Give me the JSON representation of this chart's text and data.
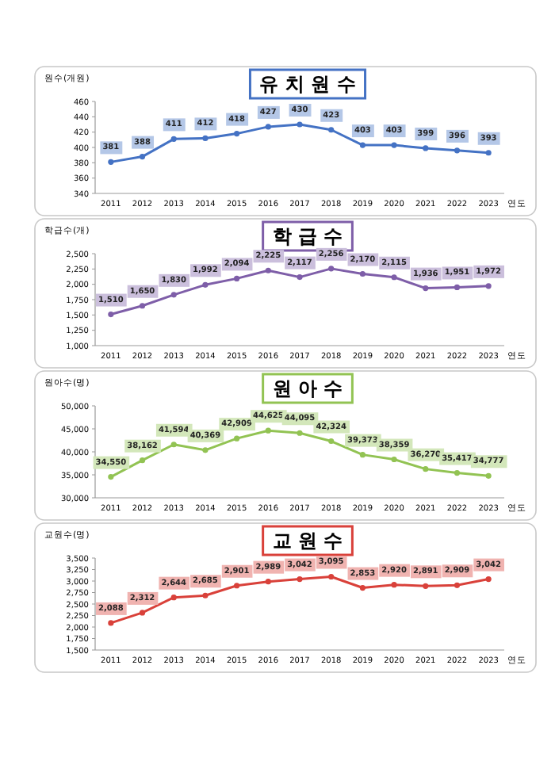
{
  "chart_data": [
    {
      "type": "line",
      "title": "유 치 원 수",
      "ylabel": "원수(개원)",
      "xlabel": "연도",
      "categories": [
        "2011",
        "2012",
        "2013",
        "2014",
        "2015",
        "2016",
        "2017",
        "2018",
        "2019",
        "2020",
        "2021",
        "2022",
        "2023"
      ],
      "series": [
        {
          "color": "#4472c4",
          "values": [
            381,
            388,
            411,
            412,
            418,
            427,
            430,
            423,
            403,
            403,
            399,
            396,
            393
          ]
        }
      ],
      "ylim": [
        340,
        460
      ],
      "yticks": [
        340,
        360,
        380,
        400,
        420,
        440,
        460
      ],
      "marker": "circle",
      "data_labels": true
    },
    {
      "type": "line",
      "title": "학 급 수",
      "ylabel": "학급수(개)",
      "xlabel": "연도",
      "categories": [
        "2011",
        "2012",
        "2013",
        "2014",
        "2015",
        "2016",
        "2017",
        "2018",
        "2019",
        "2020",
        "2021",
        "2022",
        "2023"
      ],
      "series": [
        {
          "color": "#7e5ea8",
          "values": [
            1510,
            1650,
            1830,
            1992,
            2094,
            2225,
            2117,
            2256,
            2170,
            2115,
            1936,
            1951,
            1972
          ],
          "value_labels": [
            "1,510",
            "1,650",
            "1,830",
            "1,992",
            "2,094",
            "2,225",
            "2,117",
            "2,256",
            "2,170",
            "2,115",
            "1,936",
            "1,951",
            "1,972"
          ]
        }
      ],
      "ylim": [
        1000,
        2500
      ],
      "yticks": [
        {
          "value": 1000,
          "label": "1,000"
        },
        {
          "value": 1250,
          "label": "1,250"
        },
        {
          "value": 1500,
          "label": "1,500"
        },
        {
          "value": 1750,
          "label": "1,750"
        },
        {
          "value": 2000,
          "label": "2,000"
        },
        {
          "value": 2250,
          "label": "2,250"
        },
        {
          "value": 2500,
          "label": "2,500"
        }
      ],
      "marker": "circle"
    },
    {
      "type": "line",
      "title": "원 아 수",
      "ylabel": "원아수(명)",
      "xlabel": "연도",
      "categories": [
        "2011",
        "2012",
        "2013",
        "2014",
        "2015",
        "2016",
        "2017",
        "2018",
        "2019",
        "2020",
        "2021",
        "2022",
        "2023"
      ],
      "series": [
        {
          "color": "#92c353",
          "values": [
            34550,
            38162,
            41594,
            40369,
            42909,
            44625,
            44095,
            42324,
            39373,
            38359,
            36270,
            35417,
            34777
          ],
          "value_labels": [
            "34,550",
            "38,162",
            "41,594",
            "40,369",
            "42,909",
            "44,625",
            "44,095",
            "42,324",
            "39,373",
            "38,359",
            "36,270",
            "35,417",
            "34,777"
          ]
        }
      ],
      "ylim": [
        30000,
        50000
      ],
      "yticks": [
        {
          "value": 30000,
          "label": "30,000"
        },
        {
          "value": 35000,
          "label": "35,000"
        },
        {
          "value": 40000,
          "label": "40,000"
        },
        {
          "value": 45000,
          "label": "45,000"
        },
        {
          "value": 50000,
          "label": "50,000"
        }
      ],
      "marker": "circle"
    },
    {
      "type": "line",
      "title": "교 원 수",
      "ylabel": "교원수(명)",
      "xlabel": "연도",
      "categories": [
        "2011",
        "2012",
        "2013",
        "2014",
        "2015",
        "2016",
        "2017",
        "2018",
        "2019",
        "2020",
        "2021",
        "2022",
        "2023"
      ],
      "series": [
        {
          "color": "#d9413a",
          "values": [
            2088,
            2312,
            2644,
            2685,
            2901,
            2989,
            3042,
            3095,
            2853,
            2920,
            2891,
            2909,
            3042
          ],
          "value_labels": [
            "2,088",
            "2,312",
            "2,644",
            "2,685",
            "2,901",
            "2,989",
            "3,042",
            "3,095",
            "2,853",
            "2,920",
            "2,891",
            "2,909",
            "3,042"
          ]
        }
      ],
      "ylim": [
        1500,
        3500
      ],
      "yticks": [
        {
          "value": 1500,
          "label": "1,500"
        },
        {
          "value": 1750,
          "label": "1,750"
        },
        {
          "value": 2000,
          "label": "2,000"
        },
        {
          "value": 2250,
          "label": "2,250"
        },
        {
          "value": 2500,
          "label": "2,500"
        },
        {
          "value": 2750,
          "label": "2,750"
        },
        {
          "value": 3000,
          "label": "3,000"
        },
        {
          "value": 3250,
          "label": "3,250"
        },
        {
          "value": 3500,
          "label": "3,500"
        }
      ],
      "marker": "circle"
    }
  ]
}
